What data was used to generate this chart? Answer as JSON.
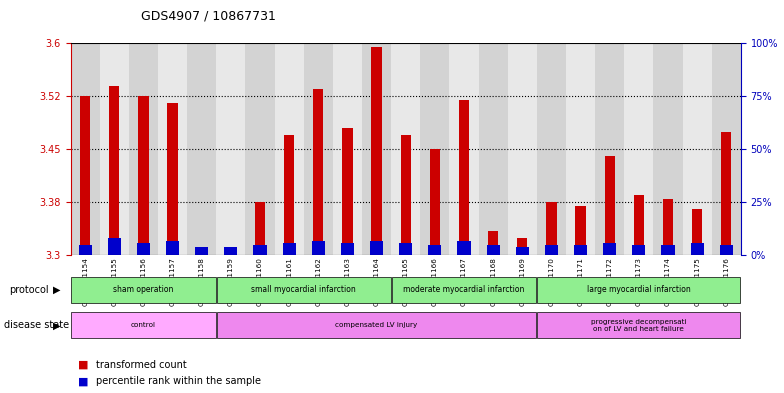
{
  "title": "GDS4907 / 10867731",
  "samples": [
    "GSM1151154",
    "GSM1151155",
    "GSM1151156",
    "GSM1151157",
    "GSM1151158",
    "GSM1151159",
    "GSM1151160",
    "GSM1151161",
    "GSM1151162",
    "GSM1151163",
    "GSM1151164",
    "GSM1151165",
    "GSM1151166",
    "GSM1151167",
    "GSM1151168",
    "GSM1151169",
    "GSM1151170",
    "GSM1151171",
    "GSM1151172",
    "GSM1151173",
    "GSM1151174",
    "GSM1151175",
    "GSM1151176"
  ],
  "red_values": [
    3.525,
    3.54,
    3.525,
    3.515,
    3.31,
    3.308,
    3.375,
    3.47,
    3.535,
    3.48,
    3.595,
    3.47,
    3.45,
    3.52,
    3.335,
    3.325,
    3.375,
    3.37,
    3.44,
    3.385,
    3.38,
    3.365,
    3.475
  ],
  "blue_values": [
    5,
    8,
    6,
    7,
    4,
    4,
    5,
    6,
    7,
    6,
    7,
    6,
    5,
    7,
    5,
    4,
    5,
    5,
    6,
    5,
    5,
    6,
    5
  ],
  "ylim_left": [
    3.3,
    3.6
  ],
  "ylim_right": [
    0,
    100
  ],
  "yticks_left": [
    3.3,
    3.375,
    3.45,
    3.525,
    3.6
  ],
  "yticks_right": [
    0,
    25,
    50,
    75,
    100
  ],
  "ytick_labels_right": [
    "0%",
    "25%",
    "50%",
    "75%",
    "100%"
  ],
  "bar_color_red": "#cc0000",
  "bar_color_blue": "#0000cc",
  "bg_color_bar_even": "#d3d3d3",
  "bg_color_bar_odd": "#e8e8e8",
  "tick_color_left": "#cc0000",
  "tick_color_right": "#0000bb",
  "protocol_groups": [
    {
      "label": "sham operation",
      "start": 0,
      "end": 5
    },
    {
      "label": "small myocardial infarction",
      "start": 5,
      "end": 11
    },
    {
      "label": "moderate myocardial infarction",
      "start": 11,
      "end": 16
    },
    {
      "label": "large myocardial infarction",
      "start": 16,
      "end": 23
    }
  ],
  "disease_groups": [
    {
      "label": "control",
      "start": 0,
      "end": 5,
      "color": "#ffaaff"
    },
    {
      "label": "compensated LV injury",
      "start": 5,
      "end": 16,
      "color": "#ee88ee"
    },
    {
      "label": "progressive decompensati\non of LV and heart failure",
      "start": 16,
      "end": 23,
      "color": "#ee88ee"
    }
  ]
}
